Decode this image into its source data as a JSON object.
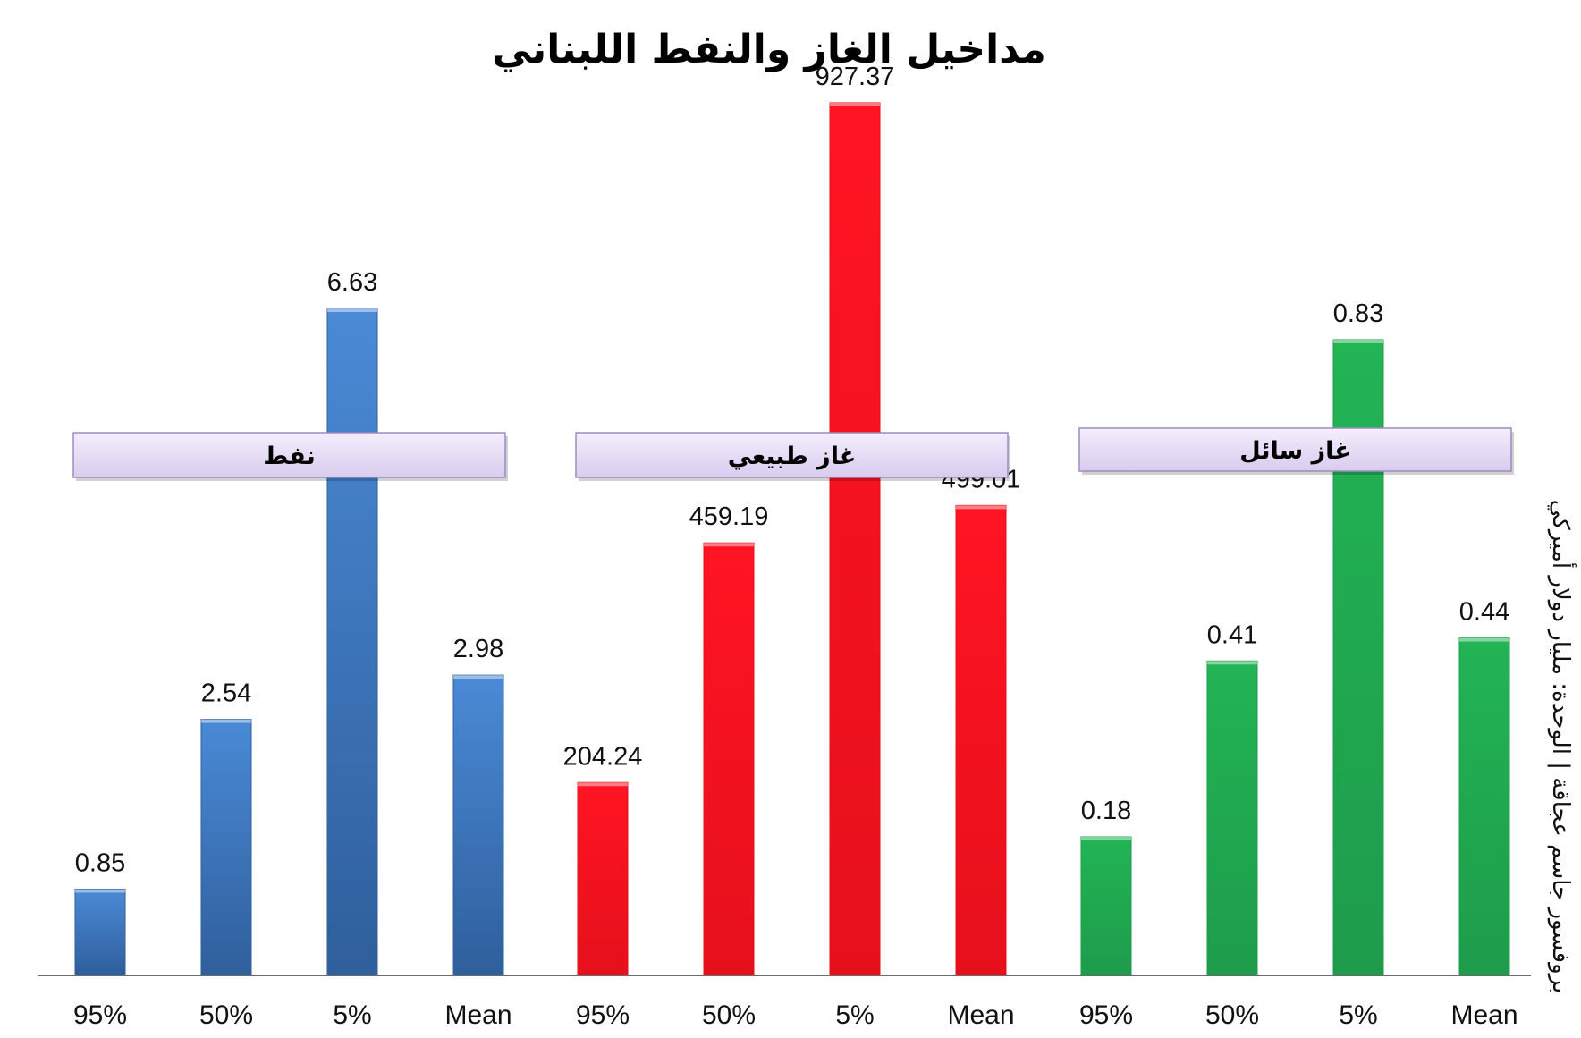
{
  "chart_data": {
    "type": "bar",
    "title": "مداخيل الغاز والنفط اللبناني",
    "side_note": "بروفسور جاسم عجاقة | الوحدة: مليار دولار أميركي",
    "categories": [
      "95%",
      "50%",
      "5%",
      "Mean"
    ],
    "groups": [
      {
        "name": "نفط",
        "color": "#4a8ad6",
        "color_dark": "#2f5f9c",
        "values": [
          0.85,
          2.54,
          6.63,
          2.98
        ],
        "value_labels": [
          "0.85",
          "2.54",
          "6.63",
          "2.98"
        ]
      },
      {
        "name": "غاز طبيعي",
        "color": "#ff1422",
        "color_dark": "#e6101c",
        "values": [
          204.24,
          459.19,
          927.37,
          499.01
        ],
        "value_labels": [
          "204.24",
          "459.19",
          "927.37",
          "499.01"
        ]
      },
      {
        "name": "غاز سائل",
        "color": "#22b455",
        "color_dark": "#1e9c4b",
        "values": [
          0.18,
          0.41,
          0.83,
          0.44
        ],
        "value_labels": [
          "0.18",
          "0.41",
          "0.83",
          "0.44"
        ]
      }
    ],
    "grid": false,
    "legend": "none"
  }
}
